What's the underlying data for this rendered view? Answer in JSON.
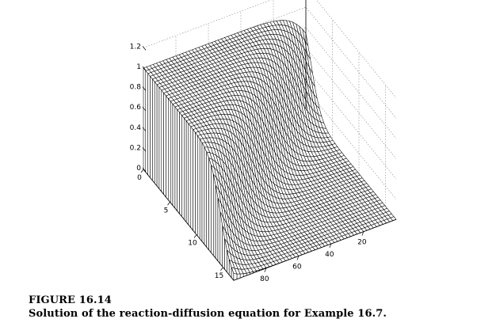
{
  "chart_data": {
    "type": "surface",
    "title": "",
    "xlabel": "",
    "ylabel": "",
    "zlabel": "",
    "z_ticks": [
      "0",
      "0.2",
      "0.4",
      "0.6",
      "0.8",
      "1",
      "1.2"
    ],
    "space_ticks": [
      "0",
      "5",
      "10",
      "15"
    ],
    "time_ticks": [
      "20",
      "40",
      "60",
      "80"
    ],
    "zlim": [
      0,
      1.2
    ],
    "space_range": [
      0,
      17
    ],
    "time_range": [
      0,
      100
    ],
    "grid": true,
    "surface_color": "#ffffff",
    "mesh_color": "#000000",
    "description_of_data": "u(x,t) reaction-diffusion front: u rises from 0 to 1 in space, front moves with time"
  },
  "caption": {
    "label": "FIGURE 16.14",
    "text": "Solution of the reaction-diffusion equation for Example 16.7."
  }
}
